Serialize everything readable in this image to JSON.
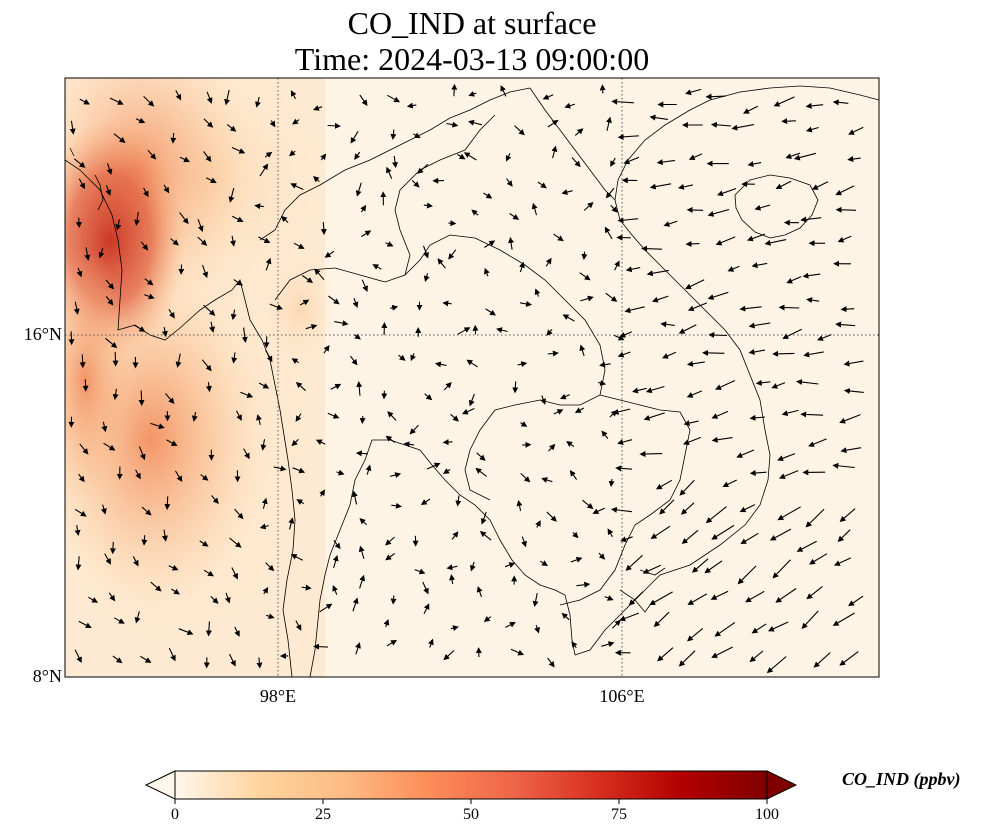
{
  "title": {
    "line1": "CO_IND at surface",
    "line2": "Time: 2024-03-13 09:00:00"
  },
  "map": {
    "lon_range": [
      93,
      112
    ],
    "lat_range": [
      8,
      22
    ],
    "lat_ticks": [
      {
        "value": 16,
        "label": "16°N"
      },
      {
        "value": 8,
        "label": "8°N"
      }
    ],
    "lon_ticks": [
      {
        "value": 98,
        "label": "98°E"
      },
      {
        "value": 106,
        "label": "106°E"
      }
    ],
    "gridlines": true,
    "field_variable": "CO_IND",
    "field_units": "ppbv",
    "overlay": "wind vectors"
  },
  "colorbar": {
    "label": "CO_IND (ppbv)",
    "min": 0,
    "max": 100,
    "ticks": [
      "0",
      "25",
      "50",
      "75",
      "100"
    ],
    "extend": "both",
    "colormap": [
      "#fff7ec",
      "#fdd49e",
      "#fdbb84",
      "#fc8d59",
      "#ef6548",
      "#d7301f",
      "#b30000",
      "#7f0000"
    ]
  }
}
